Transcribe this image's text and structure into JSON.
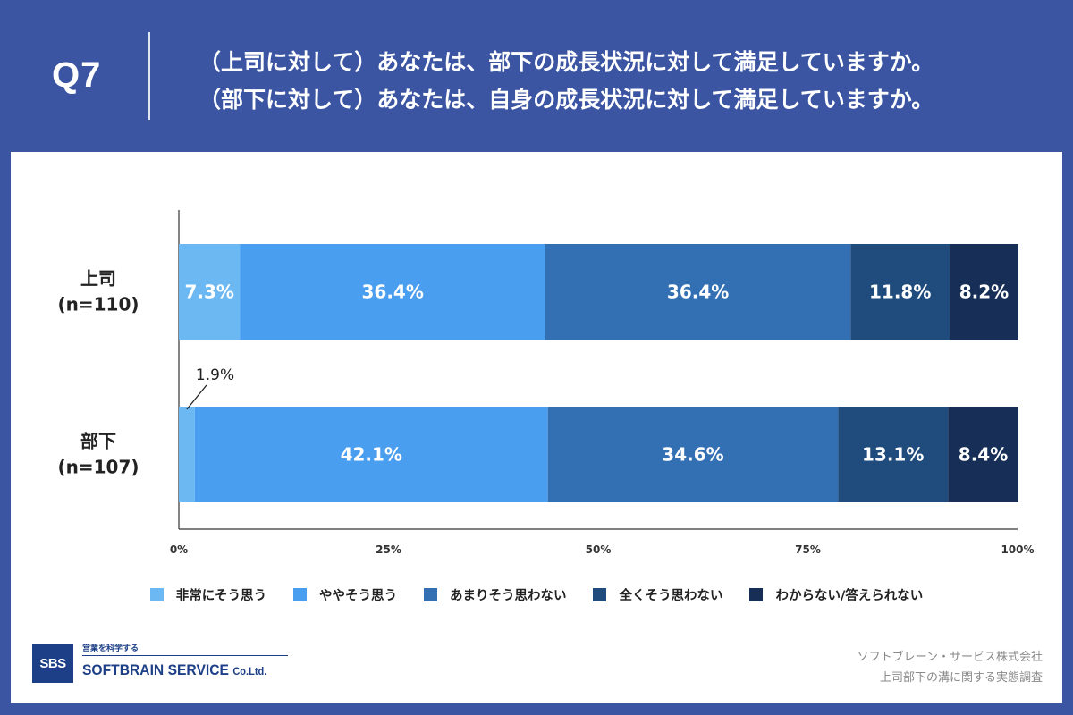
{
  "header": {
    "q_label": "Q7",
    "question_lines": [
      "（上司に対して）あなたは、部下の成長状況に対して満足していますか。",
      "（部下に対して）あなたは、自身の成長状況に対して満足していますか。"
    ]
  },
  "colors": {
    "header_bg": "#3b55a3",
    "panel_bg": "#ffffff"
  },
  "chart_data": {
    "type": "bar",
    "orientation": "horizontal-stacked-100",
    "categories": [
      {
        "name": "上司",
        "n": "(n=110)"
      },
      {
        "name": "部下",
        "n": "(n=107)"
      }
    ],
    "series": [
      {
        "name": "非常にそう思う",
        "color": "#6cb8f2",
        "values": [
          7.3,
          1.9
        ],
        "labels": [
          "7.3%",
          "1.9%"
        ]
      },
      {
        "name": "ややそう思う",
        "color": "#4a9ef0",
        "values": [
          36.4,
          42.1
        ],
        "labels": [
          "36.4%",
          "42.1%"
        ]
      },
      {
        "name": "あまりそう思わない",
        "color": "#336fb3",
        "values": [
          36.4,
          34.6
        ],
        "labels": [
          "36.4%",
          "34.6%"
        ]
      },
      {
        "name": "全くそう思わない",
        "color": "#1f4b7d",
        "values": [
          11.8,
          13.1
        ],
        "labels": [
          "11.8%",
          "13.1%"
        ]
      },
      {
        "name": "わからない/答えられない",
        "color": "#172f57",
        "values": [
          8.2,
          8.4
        ],
        "labels": [
          "8.2%",
          "8.4%"
        ]
      }
    ],
    "xticks": [
      "0%",
      "25%",
      "50%",
      "75%",
      "100%"
    ],
    "xlim": [
      0,
      100
    ],
    "grid": false,
    "legend_position": "bottom"
  },
  "footer": {
    "logo_badge": "SBS",
    "logo_tagline": "営業を科学する",
    "logo_name": "SOFTBRAIN SERVICE",
    "logo_suffix": "Co.Ltd.",
    "credit_company": "ソフトブレーン・サービス株式会社",
    "credit_survey": "上司部下の溝に関する実態調査"
  }
}
